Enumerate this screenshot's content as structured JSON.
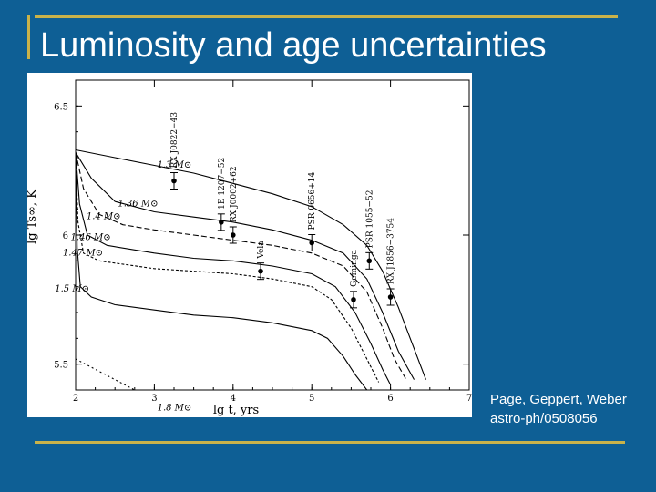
{
  "slide": {
    "title": "Luminosity and age uncertainties",
    "credit_line1": "Page, Geppert, Weber",
    "credit_line2": "astro-ph/0508056"
  },
  "colors": {
    "background": "#0e5f95",
    "frame": "#c9b24a",
    "title_text": "#ffffff"
  },
  "chart_data": {
    "type": "line",
    "xlabel": "lg t, yrs",
    "ylabel": "lg Ts∞, K",
    "xlim": [
      2,
      7
    ],
    "ylim": [
      5.4,
      6.6
    ],
    "x_ticks": [
      "2",
      "3",
      "4",
      "5",
      "6",
      "7"
    ],
    "y_ticks": [
      "5.5",
      "6",
      "6.5"
    ],
    "grid": false,
    "series": [
      {
        "name": "1.3 M⊙",
        "x": [
          2.0,
          2.5,
          3.0,
          3.5,
          4.0,
          4.5,
          5.0,
          5.4,
          5.7,
          5.9,
          6.1,
          6.3,
          6.45
        ],
        "y": [
          6.33,
          6.3,
          6.27,
          6.24,
          6.2,
          6.16,
          6.11,
          6.04,
          5.96,
          5.86,
          5.72,
          5.56,
          5.44
        ]
      },
      {
        "name": "1.36 M⊙",
        "x": [
          2.0,
          2.2,
          2.5,
          3.0,
          3.5,
          4.0,
          4.5,
          5.0,
          5.4,
          5.7,
          5.9,
          6.1,
          6.3
        ],
        "y": [
          6.32,
          6.22,
          6.13,
          6.09,
          6.07,
          6.05,
          6.02,
          5.98,
          5.93,
          5.83,
          5.7,
          5.55,
          5.44
        ]
      },
      {
        "name": "1.4 M⊙",
        "x": [
          2.0,
          2.1,
          2.3,
          2.6,
          3.0,
          3.5,
          4.0,
          4.5,
          5.0,
          5.4,
          5.7,
          5.9,
          6.05,
          6.2
        ],
        "y": [
          6.32,
          6.18,
          6.08,
          6.04,
          6.02,
          6.0,
          5.98,
          5.96,
          5.93,
          5.88,
          5.78,
          5.64,
          5.52,
          5.44
        ]
      },
      {
        "name": "1.46 M⊙",
        "x": [
          2.0,
          2.05,
          2.15,
          2.4,
          3.0,
          3.5,
          4.0,
          4.5,
          5.0,
          5.3,
          5.55,
          5.75,
          5.9,
          6.0
        ],
        "y": [
          6.32,
          6.12,
          6.0,
          5.96,
          5.93,
          5.91,
          5.9,
          5.88,
          5.85,
          5.8,
          5.7,
          5.58,
          5.48,
          5.42
        ]
      },
      {
        "name": "1.47 M⊙",
        "x": [
          2.0,
          2.03,
          2.1,
          2.3,
          3.0,
          3.5,
          4.0,
          4.5,
          5.0,
          5.25,
          5.5,
          5.7,
          5.85
        ],
        "y": [
          6.32,
          6.05,
          5.93,
          5.9,
          5.87,
          5.86,
          5.85,
          5.83,
          5.8,
          5.75,
          5.64,
          5.52,
          5.43
        ]
      },
      {
        "name": "1.5 M⊙",
        "x": [
          2.0,
          2.02,
          2.06,
          2.2,
          2.5,
          3.0,
          3.5,
          4.0,
          4.5,
          5.0,
          5.2,
          5.4,
          5.55,
          5.7
        ],
        "y": [
          6.32,
          5.95,
          5.8,
          5.76,
          5.73,
          5.71,
          5.69,
          5.68,
          5.66,
          5.63,
          5.6,
          5.53,
          5.46,
          5.4
        ]
      },
      {
        "name": "1.8 M⊙",
        "x": [
          2.0,
          2.5,
          3.0,
          3.5,
          4.0,
          4.5,
          5.0
        ],
        "y": [
          5.52,
          5.44,
          5.36,
          5.3,
          5.24,
          5.19,
          5.14
        ]
      }
    ],
    "observations": [
      {
        "name": "RX J0822−43",
        "x": 3.25,
        "y": 6.21
      },
      {
        "name": "1E 1207−52",
        "x": 3.85,
        "y": 6.05
      },
      {
        "name": "RX J0002+62",
        "x": 4.0,
        "y": 6.0
      },
      {
        "name": "Vela",
        "x": 4.35,
        "y": 5.86
      },
      {
        "name": "PSR 0656+14",
        "x": 5.0,
        "y": 5.97
      },
      {
        "name": "Geminga",
        "x": 5.53,
        "y": 5.75
      },
      {
        "name": "PSR 1055−52",
        "x": 5.73,
        "y": 5.9
      },
      {
        "name": "RX J1856−3754",
        "x": 6.0,
        "y": 5.76
      }
    ]
  }
}
